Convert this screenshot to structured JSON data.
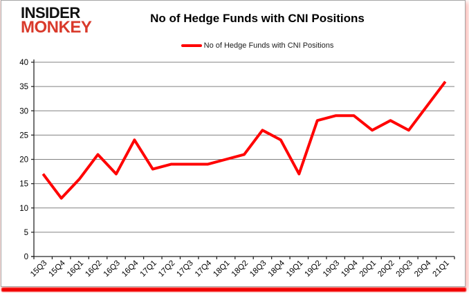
{
  "logo": {
    "line1": "INSIDER",
    "line2": "MONKEY",
    "color": "#d93a2b"
  },
  "header": {
    "title": "No of Hedge Funds with CNI Positions"
  },
  "legend": {
    "label": "No of Hedge Funds with CNI Positions",
    "color": "#ff0000"
  },
  "chart_data": {
    "type": "line",
    "title": "No of Hedge Funds with CNI Positions",
    "categories": [
      "15Q3",
      "15Q4",
      "16Q1",
      "16Q2",
      "16Q3",
      "16Q4",
      "17Q1",
      "17Q2",
      "17Q3",
      "17Q4",
      "18Q1",
      "18Q2",
      "18Q3",
      "18Q4",
      "19Q1",
      "19Q2",
      "19Q3",
      "19Q4",
      "20Q1",
      "20Q2",
      "20Q3",
      "20Q4",
      "21Q1"
    ],
    "series": [
      {
        "name": "No of Hedge Funds with CNI Positions",
        "color": "#ff0000",
        "values": [
          17,
          12,
          16,
          21,
          17,
          24,
          18,
          19,
          19,
          19,
          20,
          21,
          26,
          24,
          17,
          28,
          29,
          29,
          26,
          28,
          26,
          31,
          36
        ]
      }
    ],
    "xlabel": "",
    "ylabel": "",
    "ylim": [
      0,
      40
    ],
    "ytick_step": 5,
    "grid": "horizontal",
    "gridline_color": "#808080",
    "axis_color": "#262626",
    "legend_position": "top",
    "line_width": 4
  }
}
